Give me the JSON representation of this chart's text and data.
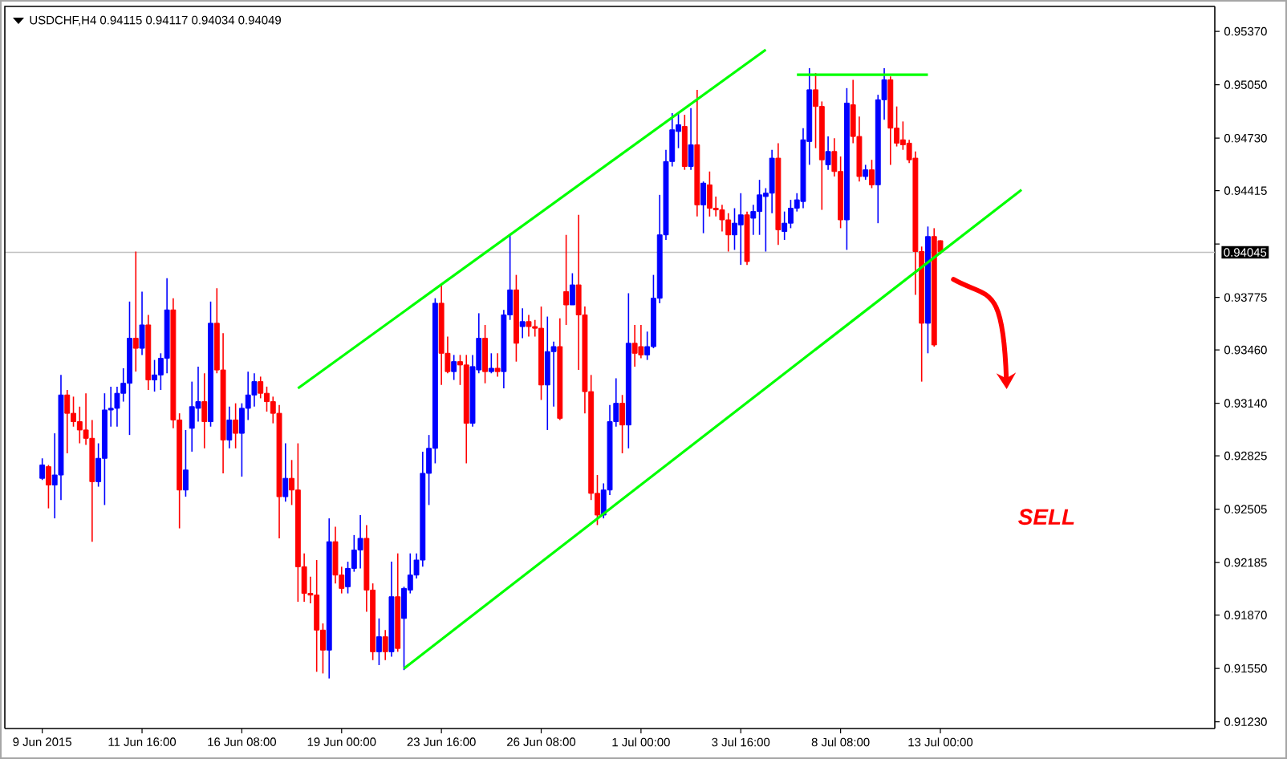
{
  "chart_data": {
    "type": "candlestick",
    "title": "USDCHF,H4 0.94115 0.94117 0.94034 0.94049",
    "categories": [
      "9 Jun 2015",
      null,
      null,
      null,
      null,
      null,
      null,
      null,
      null,
      null,
      null,
      null,
      null,
      null,
      null,
      null,
      "11 Jun 16:00",
      null,
      null,
      null,
      null,
      null,
      null,
      null,
      null,
      null,
      null,
      null,
      null,
      null,
      null,
      null,
      "16 Jun 08:00",
      null,
      null,
      null,
      null,
      null,
      null,
      null,
      null,
      null,
      null,
      null,
      null,
      null,
      null,
      null,
      "19 Jun 00:00",
      null,
      null,
      null,
      null,
      null,
      null,
      null,
      null,
      null,
      null,
      null,
      null,
      null,
      null,
      null,
      "23 Jun 16:00",
      null,
      null,
      null,
      null,
      null,
      null,
      null,
      null,
      null,
      null,
      null,
      null,
      null,
      null,
      null,
      "26 Jun 08:00",
      null,
      null,
      null,
      null,
      null,
      null,
      null,
      null,
      null,
      null,
      null,
      null,
      null,
      null,
      null,
      "1 Jul 00:00",
      null,
      null,
      null,
      null,
      null,
      null,
      null,
      null,
      null,
      null,
      null,
      null,
      null,
      null,
      null,
      "3 Jul 16:00",
      null,
      null,
      null,
      null,
      null,
      null,
      null,
      null,
      null,
      null,
      null,
      null,
      null,
      null,
      null,
      "8 Jul 08:00",
      null,
      null,
      null,
      null,
      null,
      null,
      null,
      null,
      null,
      null,
      null,
      null,
      null,
      null,
      null,
      "13 Jul 00:00",
      null,
      null,
      null,
      null,
      null,
      null,
      null,
      null,
      null,
      null,
      null,
      null,
      null,
      null,
      null,
      null,
      null,
      null,
      null,
      null,
      null,
      null,
      null,
      null,
      null,
      null,
      null,
      null,
      null,
      null,
      null,
      null,
      null,
      null,
      null,
      null,
      null,
      null,
      null,
      null,
      null,
      null,
      null,
      null
    ],
    "ohlc": [
      [
        0.9269,
        0.9281,
        0.9268,
        0.9277
      ],
      [
        0.9276,
        0.9277,
        0.9251,
        0.9265
      ],
      [
        0.9265,
        0.9296,
        0.9245,
        0.9271
      ],
      [
        0.9271,
        0.9331,
        0.9256,
        0.9319
      ],
      [
        0.9319,
        0.9322,
        0.9284,
        0.9308
      ],
      [
        0.9308,
        0.9318,
        0.93,
        0.9303
      ],
      [
        0.9303,
        0.9312,
        0.929,
        0.9298
      ],
      [
        0.9298,
        0.932,
        0.9289,
        0.9293
      ],
      [
        0.9293,
        0.9304,
        0.9231,
        0.9267
      ],
      [
        0.9267,
        0.929,
        0.9264,
        0.9281
      ],
      [
        0.9281,
        0.932,
        0.9253,
        0.931
      ],
      [
        0.931,
        0.9324,
        0.93,
        0.9311
      ],
      [
        0.9311,
        0.9324,
        0.93,
        0.932
      ],
      [
        0.932,
        0.9335,
        0.9315,
        0.9326
      ],
      [
        0.9326,
        0.9375,
        0.9295,
        0.9353
      ],
      [
        0.9353,
        0.9405,
        0.9333,
        0.9347
      ],
      [
        0.9347,
        0.9381,
        0.9343,
        0.9361
      ],
      [
        0.9361,
        0.9367,
        0.9322,
        0.9328
      ],
      [
        0.9328,
        0.934,
        0.9321,
        0.9331
      ],
      [
        0.9331,
        0.9344,
        0.9322,
        0.9341
      ],
      [
        0.9341,
        0.9389,
        0.9332,
        0.937
      ],
      [
        0.937,
        0.9377,
        0.9299,
        0.9304
      ],
      [
        0.9304,
        0.9308,
        0.9239,
        0.9262
      ],
      [
        0.9262,
        0.9298,
        0.9258,
        0.9274
      ],
      [
        0.9299,
        0.9327,
        0.9285,
        0.9312
      ],
      [
        0.9311,
        0.9336,
        0.9303,
        0.9315
      ],
      [
        0.9315,
        0.9332,
        0.9287,
        0.9303
      ],
      [
        0.9303,
        0.9375,
        0.93,
        0.9362
      ],
      [
        0.9362,
        0.9383,
        0.9332,
        0.9334
      ],
      [
        0.9334,
        0.9356,
        0.9272,
        0.9292
      ],
      [
        0.9292,
        0.9312,
        0.9287,
        0.9304
      ],
      [
        0.9304,
        0.9314,
        0.9287,
        0.9296
      ],
      [
        0.9296,
        0.9314,
        0.927,
        0.9311
      ],
      [
        0.9311,
        0.9333,
        0.9304,
        0.9319
      ],
      [
        0.9319,
        0.9332,
        0.9312,
        0.9327
      ],
      [
        0.9327,
        0.933,
        0.9317,
        0.932
      ],
      [
        0.932,
        0.9324,
        0.9309,
        0.9315
      ],
      [
        0.9315,
        0.9318,
        0.9302,
        0.9308
      ],
      [
        0.9308,
        0.9313,
        0.9233,
        0.9258
      ],
      [
        0.9258,
        0.929,
        0.9255,
        0.9269
      ],
      [
        0.9269,
        0.928,
        0.9253,
        0.9262
      ],
      [
        0.9262,
        0.929,
        0.9195,
        0.9216
      ],
      [
        0.9216,
        0.9224,
        0.9195,
        0.92
      ],
      [
        0.92,
        0.921,
        0.9194,
        0.9199
      ],
      [
        0.9199,
        0.922,
        0.9153,
        0.9178
      ],
      [
        0.9178,
        0.9182,
        0.9152,
        0.9166
      ],
      [
        0.9166,
        0.9245,
        0.9149,
        0.9231
      ],
      [
        0.9231,
        0.924,
        0.9206,
        0.9211
      ],
      [
        0.9211,
        0.9216,
        0.92,
        0.9203
      ],
      [
        0.9204,
        0.9219,
        0.92,
        0.9215
      ],
      [
        0.9215,
        0.9235,
        0.9213,
        0.9226
      ],
      [
        0.9226,
        0.9247,
        0.9215,
        0.9233
      ],
      [
        0.9233,
        0.9241,
        0.9189,
        0.9202
      ],
      [
        0.9202,
        0.9206,
        0.916,
        0.9165
      ],
      [
        0.9165,
        0.9185,
        0.9157,
        0.9174
      ],
      [
        0.9174,
        0.9178,
        0.916,
        0.9165
      ],
      [
        0.9165,
        0.9219,
        0.9162,
        0.9198
      ],
      [
        0.9198,
        0.9224,
        0.9165,
        0.9167
      ],
      [
        0.9185,
        0.9204,
        0.9154,
        0.9203
      ],
      [
        0.9202,
        0.9224,
        0.92,
        0.9211
      ],
      [
        0.9211,
        0.9224,
        0.9209,
        0.922
      ],
      [
        0.922,
        0.9285,
        0.9216,
        0.9272
      ],
      [
        0.9272,
        0.9295,
        0.9253,
        0.9287
      ],
      [
        0.9287,
        0.9377,
        0.9278,
        0.9374
      ],
      [
        0.9374,
        0.9385,
        0.9325,
        0.9344
      ],
      [
        0.9344,
        0.9354,
        0.9332,
        0.9333
      ],
      [
        0.9333,
        0.9343,
        0.9328,
        0.9339
      ],
      [
        0.9339,
        0.9343,
        0.9325,
        0.9337
      ],
      [
        0.9337,
        0.9343,
        0.9278,
        0.9302
      ],
      [
        0.9302,
        0.9343,
        0.93,
        0.9336
      ],
      [
        0.9334,
        0.9368,
        0.9332,
        0.9353
      ],
      [
        0.9353,
        0.9361,
        0.9326,
        0.9333
      ],
      [
        0.9333,
        0.9344,
        0.9332,
        0.9335
      ],
      [
        0.9335,
        0.9344,
        0.933,
        0.9333
      ],
      [
        0.9333,
        0.937,
        0.9323,
        0.9367
      ],
      [
        0.9367,
        0.9415,
        0.9364,
        0.9382
      ],
      [
        0.9382,
        0.9391,
        0.9339,
        0.935
      ],
      [
        0.936,
        0.9371,
        0.9353,
        0.9363
      ],
      [
        0.9363,
        0.9367,
        0.9354,
        0.936
      ],
      [
        0.936,
        0.9364,
        0.9354,
        0.9359
      ],
      [
        0.9359,
        0.9372,
        0.9316,
        0.9325
      ],
      [
        0.9325,
        0.9366,
        0.9298,
        0.9345
      ],
      [
        0.9345,
        0.9351,
        0.9312,
        0.9348
      ],
      [
        0.9348,
        0.9365,
        0.9304,
        0.9305
      ],
      [
        0.9381,
        0.9415,
        0.9361,
        0.9373
      ],
      [
        0.9373,
        0.9392,
        0.9373,
        0.9385
      ],
      [
        0.9385,
        0.9427,
        0.9334,
        0.9367
      ],
      [
        0.9367,
        0.9372,
        0.9308,
        0.9321
      ],
      [
        0.9321,
        0.9331,
        0.9256,
        0.926
      ],
      [
        0.926,
        0.9271,
        0.9241,
        0.9247
      ],
      [
        0.9247,
        0.9266,
        0.9245,
        0.9262
      ],
      [
        0.9262,
        0.9313,
        0.9259,
        0.9303
      ],
      [
        0.9303,
        0.9329,
        0.93,
        0.9314
      ],
      [
        0.9314,
        0.9319,
        0.9284,
        0.9301
      ],
      [
        0.9301,
        0.938,
        0.9287,
        0.935
      ],
      [
        0.935,
        0.9361,
        0.9336,
        0.9344
      ],
      [
        0.9348,
        0.9361,
        0.9341,
        0.9343
      ],
      [
        0.9343,
        0.9357,
        0.934,
        0.9348
      ],
      [
        0.9348,
        0.9391,
        0.9347,
        0.9377
      ],
      [
        0.9377,
        0.9439,
        0.9374,
        0.9415
      ],
      [
        0.9415,
        0.9466,
        0.9412,
        0.9459
      ],
      [
        0.9459,
        0.9488,
        0.9456,
        0.9478
      ],
      [
        0.9477,
        0.9488,
        0.9467,
        0.9481
      ],
      [
        0.948,
        0.9487,
        0.9454,
        0.9456
      ],
      [
        0.9456,
        0.9491,
        0.9454,
        0.9469
      ],
      [
        0.9469,
        0.9502,
        0.9426,
        0.9433
      ],
      [
        0.9433,
        0.9447,
        0.9416,
        0.9446
      ],
      [
        0.9445,
        0.9453,
        0.9426,
        0.9431
      ],
      [
        0.9431,
        0.9438,
        0.9426,
        0.943
      ],
      [
        0.943,
        0.9433,
        0.9417,
        0.9424
      ],
      [
        0.9424,
        0.9428,
        0.9405,
        0.9415
      ],
      [
        0.9415,
        0.9431,
        0.9406,
        0.9422
      ],
      [
        0.9421,
        0.944,
        0.9397,
        0.9427
      ],
      [
        0.9427,
        0.9429,
        0.9397,
        0.9399
      ],
      [
        0.9425,
        0.9433,
        0.9415,
        0.9429
      ],
      [
        0.9429,
        0.9448,
        0.9415,
        0.9439
      ],
      [
        0.9438,
        0.9443,
        0.9405,
        0.944
      ],
      [
        0.944,
        0.9466,
        0.9428,
        0.9461
      ],
      [
        0.9461,
        0.947,
        0.9409,
        0.9418
      ],
      [
        0.9417,
        0.9429,
        0.9412,
        0.9422
      ],
      [
        0.9422,
        0.9436,
        0.9419,
        0.9431
      ],
      [
        0.9431,
        0.944,
        0.9429,
        0.9436
      ],
      [
        0.9435,
        0.9479,
        0.9431,
        0.9472
      ],
      [
        0.9471,
        0.9515,
        0.9457,
        0.9502
      ],
      [
        0.9502,
        0.9512,
        0.9467,
        0.9492
      ],
      [
        0.9492,
        0.9495,
        0.943,
        0.946
      ],
      [
        0.9457,
        0.9474,
        0.9454,
        0.9465
      ],
      [
        0.9465,
        0.9473,
        0.945,
        0.9453
      ],
      [
        0.9453,
        0.9462,
        0.9419,
        0.9424
      ],
      [
        0.9424,
        0.9503,
        0.9406,
        0.9494
      ],
      [
        0.9493,
        0.9508,
        0.947,
        0.9474
      ],
      [
        0.9474,
        0.9486,
        0.9447,
        0.945
      ],
      [
        0.945,
        0.9457,
        0.9448,
        0.9454
      ],
      [
        0.9454,
        0.946,
        0.9443,
        0.9445
      ],
      [
        0.9445,
        0.9499,
        0.9422,
        0.9496
      ],
      [
        0.9496,
        0.9515,
        0.9484,
        0.9508
      ],
      [
        0.9508,
        0.951,
        0.9457,
        0.9479
      ],
      [
        0.9479,
        0.9492,
        0.9468,
        0.947
      ],
      [
        0.9472,
        0.9483,
        0.9466,
        0.9469
      ],
      [
        0.947,
        0.9472,
        0.9458,
        0.946
      ],
      [
        0.9461,
        0.9465,
        0.9379,
        0.9405
      ],
      [
        0.9405,
        0.9408,
        0.9327,
        0.9362
      ],
      [
        0.9362,
        0.942,
        0.9344,
        0.9414
      ],
      [
        0.9414,
        0.9419,
        0.9348,
        0.9349
      ],
      [
        0.94115,
        0.94117,
        0.94034,
        0.94049
      ],
      null,
      null,
      null,
      null,
      null,
      null,
      null,
      null,
      null,
      null,
      null,
      null,
      null,
      null,
      null,
      null,
      null,
      null,
      null,
      null,
      null,
      null,
      null,
      null,
      null,
      null,
      null,
      null,
      null,
      null,
      null,
      null,
      null,
      null,
      null,
      null,
      null,
      null,
      null,
      null,
      null,
      null,
      null,
      null
    ],
    "series": [
      {
        "type": "line",
        "color": "#00ff00",
        "values": [
          null,
          null,
          null,
          null,
          null,
          null,
          null,
          null,
          null,
          null,
          null,
          null,
          null,
          null,
          null,
          null,
          null,
          null,
          null,
          null,
          null,
          null,
          null,
          null,
          null,
          null,
          null,
          null,
          null,
          null,
          null,
          null,
          null,
          null,
          null,
          null,
          null,
          null,
          null,
          null,
          null,
          0.9323,
          null,
          null,
          null,
          null,
          null,
          null,
          null,
          null,
          null,
          null,
          null,
          null,
          null,
          null,
          null,
          null,
          null,
          null,
          null,
          null,
          null,
          null,
          null,
          null,
          null,
          null,
          null,
          null,
          null,
          null,
          null,
          null,
          null,
          null,
          null,
          null,
          null,
          null,
          null,
          null,
          null,
          null,
          null,
          null,
          null,
          null,
          null,
          null,
          null,
          null,
          null,
          null,
          null,
          null,
          null,
          null,
          null,
          null,
          null,
          null,
          null,
          null,
          null,
          null,
          null,
          null,
          null,
          null,
          null,
          null,
          null,
          null,
          null,
          null,
          0.9526,
          null,
          null,
          null,
          null,
          null,
          null,
          null,
          null,
          null,
          null,
          null,
          null,
          null,
          null,
          null,
          null,
          null,
          null,
          null,
          null,
          null,
          null,
          null,
          null,
          null,
          null,
          null,
          null,
          null,
          null,
          null,
          null,
          null,
          null,
          null,
          null,
          null,
          null,
          null,
          null,
          null,
          null,
          null,
          null,
          null,
          null,
          null,
          null,
          null,
          null,
          null,
          null,
          null,
          null,
          null,
          null,
          null,
          null,
          null,
          null,
          null,
          null,
          null,
          null,
          null,
          null,
          null,
          null,
          null,
          null,
          null,
          null
        ]
      },
      {
        "type": "line",
        "color": "#00ff00",
        "values": [
          null,
          null,
          null,
          null,
          null,
          null,
          null,
          null,
          null,
          null,
          null,
          null,
          null,
          null,
          null,
          null,
          null,
          null,
          null,
          null,
          null,
          null,
          null,
          null,
          null,
          null,
          null,
          null,
          null,
          null,
          null,
          null,
          null,
          null,
          null,
          null,
          null,
          null,
          null,
          null,
          null,
          null,
          null,
          null,
          null,
          null,
          null,
          null,
          null,
          null,
          null,
          null,
          null,
          null,
          null,
          null,
          null,
          null,
          0.9155,
          null,
          null,
          null,
          null,
          null,
          null,
          null,
          null,
          null,
          null,
          null,
          null,
          null,
          null,
          null,
          null,
          null,
          null,
          null,
          null,
          null,
          null,
          null,
          null,
          null,
          null,
          null,
          null,
          null,
          null,
          null,
          null,
          null,
          null,
          null,
          null,
          null,
          null,
          null,
          null,
          null,
          null,
          null,
          null,
          null,
          null,
          null,
          null,
          null,
          null,
          null,
          null,
          null,
          null,
          null,
          null,
          null,
          null,
          null,
          null,
          null,
          null,
          null,
          null,
          null,
          null,
          null,
          null,
          null,
          null,
          null,
          null,
          null,
          null,
          null,
          null,
          null,
          null,
          null,
          null,
          null,
          null,
          null,
          null,
          null,
          null,
          null,
          null,
          null,
          null,
          null,
          null,
          null,
          null,
          null,
          null,
          null,
          null,
          0.9442,
          null,
          null,
          null,
          null,
          null,
          null,
          null,
          null,
          null,
          null,
          null,
          null,
          null,
          null,
          null,
          null,
          null,
          null,
          null,
          null,
          null,
          null,
          null,
          null,
          null,
          null,
          null,
          null,
          null,
          null,
          null
        ]
      },
      {
        "type": "line",
        "color": "#00ff00",
        "values": [
          null,
          null,
          null,
          null,
          null,
          null,
          null,
          null,
          null,
          null,
          null,
          null,
          null,
          null,
          null,
          null,
          null,
          null,
          null,
          null,
          null,
          null,
          null,
          null,
          null,
          null,
          null,
          null,
          null,
          null,
          null,
          null,
          null,
          null,
          null,
          null,
          null,
          null,
          null,
          null,
          null,
          null,
          null,
          null,
          null,
          null,
          null,
          null,
          null,
          null,
          null,
          null,
          null,
          null,
          null,
          null,
          null,
          null,
          null,
          null,
          null,
          null,
          null,
          null,
          null,
          null,
          null,
          null,
          null,
          null,
          null,
          null,
          null,
          null,
          null,
          null,
          null,
          null,
          null,
          null,
          null,
          null,
          null,
          null,
          null,
          null,
          null,
          null,
          null,
          null,
          null,
          null,
          null,
          null,
          null,
          null,
          null,
          null,
          null,
          null,
          null,
          null,
          null,
          null,
          null,
          null,
          null,
          null,
          null,
          null,
          null,
          null,
          null,
          null,
          null,
          null,
          null,
          null,
          null,
          null,
          null,
          0.9511,
          null,
          null,
          null,
          null,
          null,
          null,
          null,
          null,
          null,
          null,
          null,
          null,
          null,
          null,
          null,
          null,
          null,
          null,
          null,
          null,
          0.9511,
          null,
          null,
          null,
          null,
          null,
          null,
          null,
          null,
          null,
          null,
          null,
          null,
          null,
          null,
          null,
          null,
          null,
          null,
          null,
          null,
          null,
          null,
          null,
          null,
          null,
          null,
          null,
          null,
          null,
          null,
          null,
          null,
          null,
          null,
          null,
          null,
          null,
          null,
          null,
          null,
          null,
          null,
          null,
          null,
          null,
          null
        ]
      }
    ],
    "ylim": [
      0.9119,
      0.9552
    ],
    "yticks": [
      {
        "value": 0.9537,
        "label": "0.95370"
      },
      {
        "value": 0.9505,
        "label": "0.95050"
      },
      {
        "value": 0.9473,
        "label": "0.94730"
      },
      {
        "value": 0.94415,
        "label": "0.94415"
      },
      {
        "value": 0.94095,
        "label": null
      },
      {
        "value": 0.93775,
        "label": "0.93775"
      },
      {
        "value": 0.9346,
        "label": "0.93460"
      },
      {
        "value": 0.9314,
        "label": "0.93140"
      },
      {
        "value": 0.92825,
        "label": "0.92825"
      },
      {
        "value": 0.92505,
        "label": "0.92505"
      },
      {
        "value": 0.92185,
        "label": "0.92185"
      },
      {
        "value": 0.9187,
        "label": "0.91870"
      },
      {
        "value": 0.9155,
        "label": "0.91550"
      },
      {
        "value": 0.9123,
        "label": "0.91230"
      }
    ],
    "ref_lines": [
      {
        "axis": "y",
        "value": 0.94045,
        "label": "0.94045",
        "color": "#c0c0c0"
      }
    ],
    "annotations": [
      "SELL"
    ]
  }
}
